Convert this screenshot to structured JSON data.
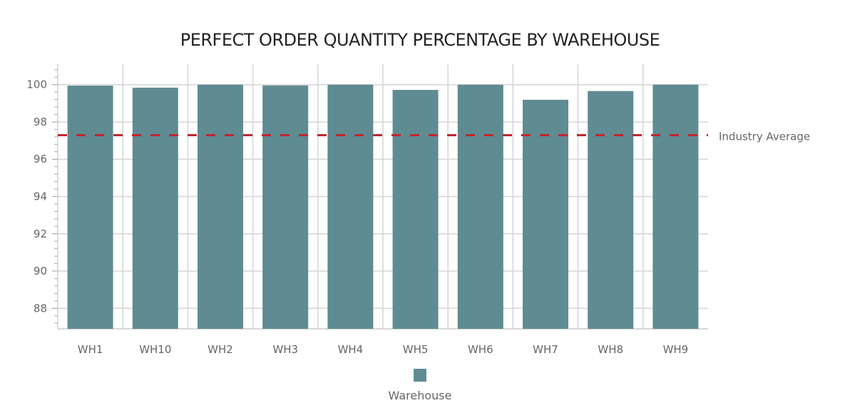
{
  "chart_data": {
    "type": "bar",
    "title": "PERFECT ORDER QUANTITY PERCENTAGE BY WAREHOUSE",
    "categories": [
      "WH1",
      "WH10",
      "WH2",
      "WH3",
      "WH4",
      "WH5",
      "WH6",
      "WH7",
      "WH8",
      "WH9"
    ],
    "series": [
      {
        "name": "Warehouse",
        "values": [
          99.95,
          99.84,
          100,
          99.96,
          100,
          99.72,
          100,
          99.19,
          99.66,
          100
        ],
        "color": "#5f8b93"
      }
    ],
    "reference_line": {
      "label": "Industry Average",
      "value": 97.29,
      "color": "#c0272d",
      "style": "dashed"
    },
    "ylim": [
      86.9,
      101.1
    ],
    "yticks": [
      88,
      90,
      92,
      94,
      96,
      98,
      100
    ],
    "xlabel": "",
    "ylabel": "",
    "grid": true,
    "legend": "bottom"
  }
}
